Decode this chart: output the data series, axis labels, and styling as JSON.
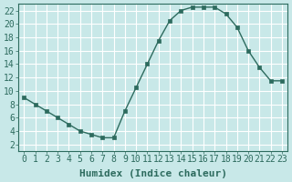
{
  "x": [
    0,
    1,
    2,
    3,
    4,
    5,
    6,
    7,
    8,
    9,
    10,
    11,
    12,
    13,
    14,
    15,
    16,
    17,
    18,
    19,
    20,
    21,
    22,
    23
  ],
  "y": [
    9,
    8,
    7,
    6,
    5,
    4,
    3.5,
    3,
    3,
    7,
    10.5,
    14,
    17.5,
    20.5,
    22,
    22.5,
    22.5,
    22.5,
    21.5,
    19.5,
    16,
    13.5,
    11.5,
    11.5
  ],
  "line_color": "#2d6b5e",
  "marker_color": "#2d6b5e",
  "bg_color": "#c8e8e8",
  "grid_color": "#ffffff",
  "xlabel": "Humidex (Indice chaleur)",
  "xlabel_fontsize": 8,
  "tick_fontsize": 7,
  "ylim": [
    1,
    23
  ],
  "xlim": [
    -0.5,
    23.5
  ],
  "yticks": [
    2,
    4,
    6,
    8,
    10,
    12,
    14,
    16,
    18,
    20,
    22
  ],
  "xticks": [
    0,
    1,
    2,
    3,
    4,
    5,
    6,
    7,
    8,
    9,
    10,
    11,
    12,
    13,
    14,
    15,
    16,
    17,
    18,
    19,
    20,
    21,
    22,
    23
  ]
}
